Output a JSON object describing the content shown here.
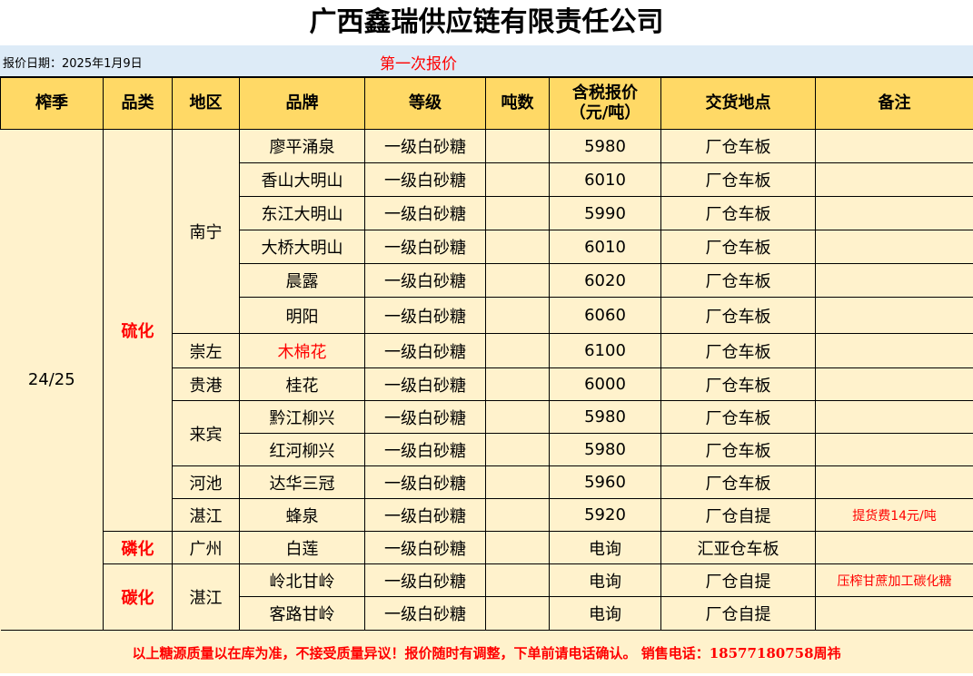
{
  "title": "广西鑫瑞供应链有限责任公司",
  "date_label": "报价日期：2025年1月9日",
  "round_label": "第一次报价",
  "headers": [
    "榨季",
    "品类",
    "地区",
    "品牌",
    "等级",
    "吨数",
    "含税报价（元/吨）",
    "交货地点",
    "备注"
  ],
  "season": "24/25",
  "categories": [
    {
      "name": "硫化",
      "rows": 12
    },
    {
      "name": "磷化",
      "rows": 1
    },
    {
      "name": "碳化",
      "rows": 2
    }
  ],
  "regions": [
    {
      "name": "南宁",
      "rows": 6
    },
    {
      "name": "崇左",
      "rows": 1
    },
    {
      "name": "贵港",
      "rows": 1
    },
    {
      "name": "来宾",
      "rows": 2
    },
    {
      "name": "河池",
      "rows": 1
    },
    {
      "name": "湛江",
      "rows": 1
    },
    {
      "name": "广州",
      "rows": 1
    },
    {
      "name": "湛江",
      "rows": 2
    }
  ],
  "rows": [
    {
      "brand": "廖平涌泉",
      "grade": "一级白砂糖",
      "tons": "",
      "price": "5980",
      "delivery": "厂仓车板",
      "note": ""
    },
    {
      "brand": "香山大明山",
      "grade": "一级白砂糖",
      "tons": "",
      "price": "6010",
      "delivery": "厂仓车板",
      "note": ""
    },
    {
      "brand": "东江大明山",
      "grade": "一级白砂糖",
      "tons": "",
      "price": "5990",
      "delivery": "厂仓车板",
      "note": ""
    },
    {
      "brand": "大桥大明山",
      "grade": "一级白砂糖",
      "tons": "",
      "price": "6010",
      "delivery": "厂仓车板",
      "note": ""
    },
    {
      "brand": "晨露",
      "grade": "一级白砂糖",
      "tons": "",
      "price": "6020",
      "delivery": "厂仓车板",
      "note": ""
    },
    {
      "brand": "明阳",
      "grade": "一级白砂糖",
      "tons": "",
      "price": "6060",
      "delivery": "厂仓车板",
      "note": ""
    },
    {
      "brand": "木棉花",
      "brand_red": true,
      "grade": "一级白砂糖",
      "tons": "",
      "price": "6100",
      "delivery": "厂仓车板",
      "note": ""
    },
    {
      "brand": "桂花",
      "grade": "一级白砂糖",
      "tons": "",
      "price": "6000",
      "delivery": "厂仓车板",
      "note": ""
    },
    {
      "brand": "黔江柳兴",
      "grade": "一级白砂糖",
      "tons": "",
      "price": "5980",
      "delivery": "厂仓车板",
      "note": ""
    },
    {
      "brand": "红河柳兴",
      "grade": "一级白砂糖",
      "tons": "",
      "price": "5980",
      "delivery": "厂仓车板",
      "note": ""
    },
    {
      "brand": "达华三冠",
      "grade": "一级白砂糖",
      "tons": "",
      "price": "5960",
      "delivery": "厂仓车板",
      "note": ""
    },
    {
      "brand": "蜂泉",
      "grade": "一级白砂糖",
      "tons": "",
      "price": "5920",
      "delivery": "厂仓自提",
      "note": "提货费14元/吨"
    },
    {
      "brand": "白莲",
      "grade": "一级白砂糖",
      "tons": "",
      "price": "电询",
      "delivery": "汇亚仓车板",
      "note": ""
    },
    {
      "brand": "岭北甘岭",
      "grade": "一级白砂糖",
      "tons": "",
      "price": "电询",
      "delivery": "厂仓自提",
      "note": "压榨甘蔗加工碳化糖"
    },
    {
      "brand": "客路甘岭",
      "grade": "一级白砂糖",
      "tons": "",
      "price": "电询",
      "delivery": "厂仓自提",
      "note": ""
    }
  ],
  "footer": "以上糖源质量以在库为准，不接受质量异议！报价随时有调整，下单前请电话确认。 销售电话：18577180758周祎",
  "colors": {
    "header_bg": "#ffd966",
    "cell_bg": "#fff2cc",
    "date_bar_bg": "#ddebf7",
    "accent_red": "#ff0000"
  }
}
